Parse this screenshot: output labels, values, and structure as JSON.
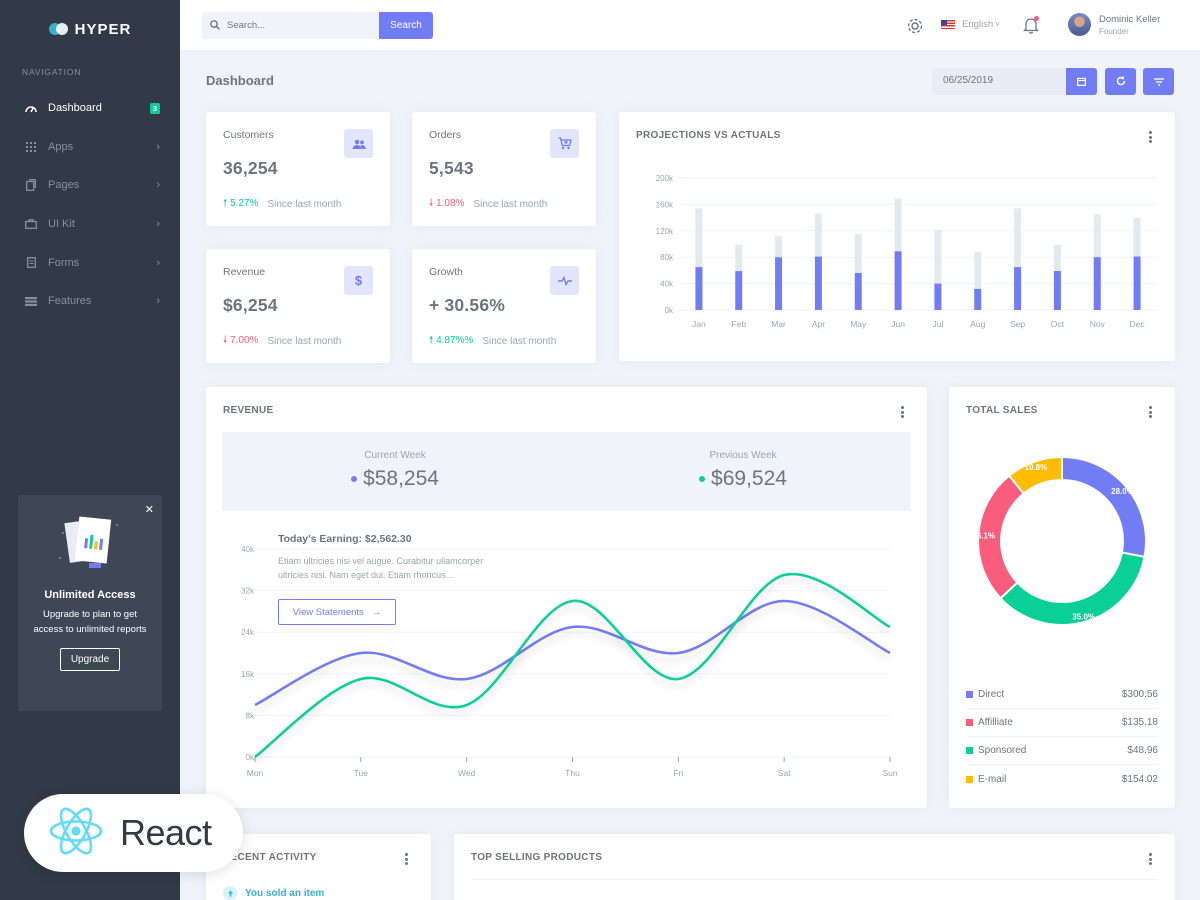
{
  "app": {
    "name": "HYPER"
  },
  "sidebar": {
    "nav_title": "NAVIGATION",
    "items": [
      {
        "label": "Dashboard",
        "icon": "gauge-icon",
        "badge": "3"
      },
      {
        "label": "Apps",
        "icon": "grid-icon"
      },
      {
        "label": "Pages",
        "icon": "copy-icon"
      },
      {
        "label": "UI Kit",
        "icon": "briefcase-icon"
      },
      {
        "label": "Forms",
        "icon": "document-icon"
      },
      {
        "label": "Features",
        "icon": "layers-icon"
      }
    ],
    "upgrade": {
      "title": "Unlimited Access",
      "text": "Upgrade to plan to get access to unlimited reports",
      "button": "Upgrade"
    }
  },
  "topbar": {
    "search_placeholder": "Search...",
    "search_button": "Search",
    "language": "English",
    "user": {
      "name": "Dominic Keller",
      "role": "Founder"
    }
  },
  "page": {
    "title": "Dashboard",
    "date": "06/25/2019"
  },
  "stats": [
    {
      "title": "Customers",
      "value": "36,254",
      "change": "5.27%",
      "direction": "up",
      "since": "Since last month",
      "icon": "users-icon"
    },
    {
      "title": "Orders",
      "value": "5,543",
      "change": "1.08%",
      "direction": "down",
      "since": "Since last month",
      "icon": "cart-icon"
    },
    {
      "title": "Revenue",
      "value": "$6,254",
      "change": "7.00%",
      "direction": "down",
      "since": "Since last month",
      "icon": "dollar-icon"
    },
    {
      "title": "Growth",
      "value": "+ 30.56%",
      "change": "4.87%%",
      "direction": "up",
      "since": "Since last month",
      "icon": "pulse-icon"
    }
  ],
  "projections": {
    "title": "PROJECTIONS VS ACTUALS"
  },
  "revenue": {
    "title": "REVENUE",
    "current_label": "Current Week",
    "current_value": "$58,254",
    "previous_label": "Previous Week",
    "previous_value": "$69,524",
    "earning_title": "Today's Earning: $2,562.30",
    "earning_desc": "Etiam ultricies nisi vel augue. Curabitur ullamcorper ultricies nisi. Nam eget dui. Etiam rhoncus...",
    "statements_button": "View Statements"
  },
  "total_sales": {
    "title": "TOTAL SALES",
    "legend": [
      {
        "name": "Direct",
        "value": "$300.56"
      },
      {
        "name": "Affilliate",
        "value": "$135.18"
      },
      {
        "name": "Sponsored",
        "value": "$48.96"
      },
      {
        "name": "E-mail",
        "value": "$154.02"
      }
    ]
  },
  "recent_activity": {
    "title": "RECENT ACTIVITY",
    "first_item": "You sold an item"
  },
  "top_selling": {
    "title": "TOP SELLING PRODUCTS"
  },
  "badge": {
    "text": "React"
  },
  "colors": {
    "primary": "#727cf5",
    "success": "#0acf97",
    "danger": "#fa5c7c",
    "warning": "#ffbc00",
    "sidebar": "#313a46",
    "projection": "#e3eaef"
  },
  "chart_data": [
    {
      "type": "bar",
      "title": "PROJECTIONS VS ACTUALS",
      "categories": [
        "Jan",
        "Feb",
        "Mar",
        "Apr",
        "May",
        "Jun",
        "Jul",
        "Aug",
        "Sep",
        "Oct",
        "Nov",
        "Dec"
      ],
      "y_ticks": [
        "0k",
        "40k",
        "80k",
        "120k",
        "160k",
        "200k"
      ],
      "ylim": [
        0,
        200
      ],
      "stacked": true,
      "series": [
        {
          "values": [
            65,
            59,
            80,
            81,
            56,
            89,
            40,
            32,
            65,
            59,
            80,
            81
          ],
          "color": "#727cf5"
        },
        {
          "values": [
            89,
            40,
            32,
            65,
            59,
            80,
            81,
            56,
            89,
            40,
            65,
            59
          ],
          "color": "#e3eaef"
        }
      ],
      "grid": true
    },
    {
      "type": "line",
      "title": "REVENUE",
      "x": [
        "Mon",
        "Tue",
        "Wed",
        "Thu",
        "Fri",
        "Sat",
        "Sun"
      ],
      "y_ticks": [
        "0k",
        "8k",
        "16k",
        "24k",
        "32k",
        "40k"
      ],
      "ylim": [
        0,
        40
      ],
      "series": [
        {
          "values": [
            10,
            20,
            15,
            25,
            20,
            30,
            20
          ],
          "color": "#727cf5"
        },
        {
          "values": [
            0,
            15,
            10,
            30,
            15,
            35,
            25
          ],
          "color": "#0acf97"
        }
      ],
      "smooth": true,
      "grid": true
    },
    {
      "type": "pie",
      "title": "TOTAL SALES",
      "donut": true,
      "slices": [
        {
          "label": "28.0%",
          "value": 28.0,
          "color": "#727cf5"
        },
        {
          "label": "35.0%",
          "value": 35.0,
          "color": "#0acf97"
        },
        {
          "label": "26.1%",
          "value": 26.1,
          "color": "#fa5c7c"
        },
        {
          "label": "10.8%",
          "value": 10.8,
          "color": "#ffbc00"
        }
      ]
    }
  ]
}
